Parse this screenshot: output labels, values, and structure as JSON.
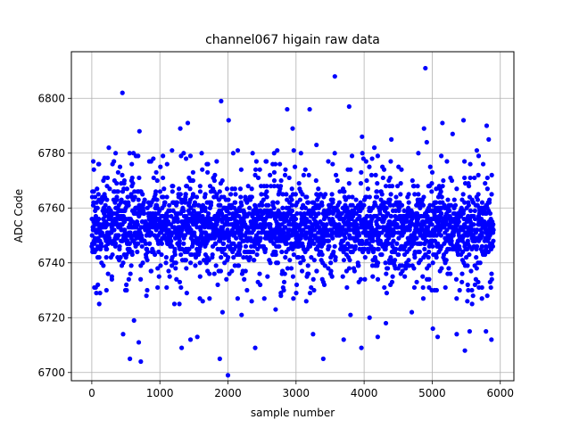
{
  "chart_data": {
    "type": "scatter",
    "title": "channel067 higain raw data",
    "xlabel": "sample number",
    "ylabel": "ADC Code",
    "xlim": [
      -300,
      6200
    ],
    "ylim": [
      6697,
      6817
    ],
    "xticks": [
      0,
      1000,
      2000,
      3000,
      4000,
      5000,
      6000
    ],
    "yticks": [
      6700,
      6720,
      6740,
      6760,
      6780,
      6800
    ],
    "grid": true,
    "marker_color": "#0000ff",
    "series": [
      {
        "x_range": [
          0,
          5900
        ],
        "n_points": 5900,
        "core_band": [
          6733,
          6767
        ],
        "typical_center": 6753,
        "outliers": [
          {
            "x": 450,
            "y": 6802
          },
          {
            "x": 1900,
            "y": 6799
          },
          {
            "x": 2010,
            "y": 6792
          },
          {
            "x": 3570,
            "y": 6808
          },
          {
            "x": 4900,
            "y": 6811
          },
          {
            "x": 2000,
            "y": 6699
          },
          {
            "x": 560,
            "y": 6705
          },
          {
            "x": 720,
            "y": 6704
          },
          {
            "x": 1880,
            "y": 6705
          },
          {
            "x": 3400,
            "y": 6705
          },
          {
            "x": 5480,
            "y": 6708
          },
          {
            "x": 2950,
            "y": 6789
          },
          {
            "x": 2870,
            "y": 6796
          },
          {
            "x": 3200,
            "y": 6796
          },
          {
            "x": 3780,
            "y": 6797
          },
          {
            "x": 1410,
            "y": 6791
          },
          {
            "x": 5150,
            "y": 6791
          },
          {
            "x": 5800,
            "y": 6790
          },
          {
            "x": 4880,
            "y": 6789
          },
          {
            "x": 5460,
            "y": 6792
          },
          {
            "x": 700,
            "y": 6788
          },
          {
            "x": 1300,
            "y": 6789
          },
          {
            "x": 4920,
            "y": 6784
          },
          {
            "x": 3970,
            "y": 6786
          },
          {
            "x": 4400,
            "y": 6785
          },
          {
            "x": 5300,
            "y": 6787
          },
          {
            "x": 250,
            "y": 6782
          },
          {
            "x": 3300,
            "y": 6783
          },
          {
            "x": 4150,
            "y": 6782
          },
          {
            "x": 5830,
            "y": 6785
          },
          {
            "x": 460,
            "y": 6714
          },
          {
            "x": 620,
            "y": 6719
          },
          {
            "x": 690,
            "y": 6711
          },
          {
            "x": 1320,
            "y": 6709
          },
          {
            "x": 1450,
            "y": 6712
          },
          {
            "x": 1550,
            "y": 6713
          },
          {
            "x": 2400,
            "y": 6709
          },
          {
            "x": 3250,
            "y": 6714
          },
          {
            "x": 3700,
            "y": 6712
          },
          {
            "x": 3960,
            "y": 6709
          },
          {
            "x": 4200,
            "y": 6713
          },
          {
            "x": 5010,
            "y": 6716
          },
          {
            "x": 5080,
            "y": 6713
          },
          {
            "x": 5360,
            "y": 6714
          },
          {
            "x": 5550,
            "y": 6715
          },
          {
            "x": 5790,
            "y": 6715
          },
          {
            "x": 5870,
            "y": 6712
          },
          {
            "x": 1920,
            "y": 6722
          },
          {
            "x": 2200,
            "y": 6721
          },
          {
            "x": 2700,
            "y": 6723
          },
          {
            "x": 4080,
            "y": 6720
          },
          {
            "x": 4700,
            "y": 6722
          },
          {
            "x": 4320,
            "y": 6718
          },
          {
            "x": 3800,
            "y": 6721
          }
        ]
      }
    ]
  }
}
